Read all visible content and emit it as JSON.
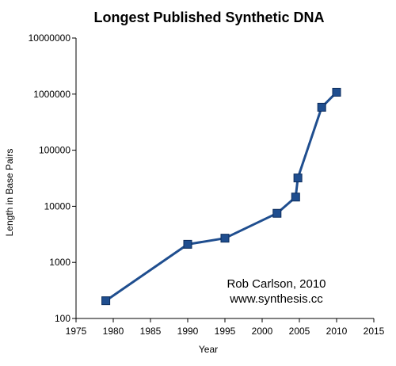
{
  "chart_data": {
    "type": "line",
    "title": "Longest Published Synthetic DNA",
    "xlabel": "Year",
    "ylabel": "Length in Base Pairs",
    "xlim": [
      1975,
      2015
    ],
    "ylim": [
      100,
      10000000
    ],
    "y_scale": "log",
    "grid": false,
    "x_ticks": [
      "1975",
      "1980",
      "1985",
      "1990",
      "1995",
      "2000",
      "2005",
      "2010",
      "2015"
    ],
    "y_ticks": [
      "100",
      "1000",
      "10000",
      "100000",
      "1000000",
      "10000000"
    ],
    "series": [
      {
        "x": [
          1979,
          1990,
          1995,
          2002,
          2004.5,
          2004.8,
          2008,
          2010
        ],
        "y": [
          207,
          2100,
          2700,
          7500,
          14600,
          32000,
          583000,
          1080000
        ],
        "color": "#1f4e8f",
        "marker": "square"
      }
    ],
    "annotations": [
      "Rob Carlson, 2010",
      "www.synthesis.cc"
    ]
  }
}
